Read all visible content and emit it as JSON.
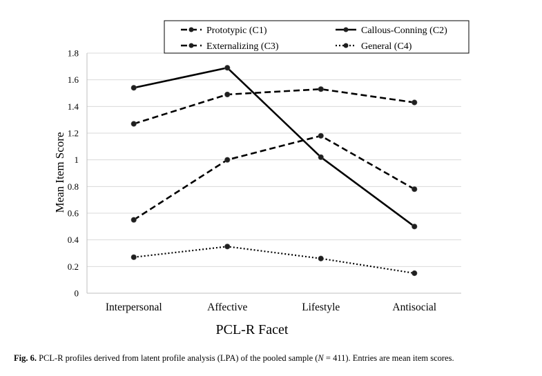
{
  "chart_data": {
    "type": "line",
    "categories": [
      "Interpersonal",
      "Affective",
      "Lifestyle",
      "Antisocial"
    ],
    "series": [
      {
        "name": "Prototypic (C1)",
        "values": [
          1.27,
          1.49,
          1.53,
          1.43
        ],
        "style": "dashed"
      },
      {
        "name": "Callous-Conning (C2)",
        "values": [
          1.54,
          1.69,
          1.02,
          0.5
        ],
        "style": "solid"
      },
      {
        "name": "Externalizing (C3)",
        "values": [
          0.55,
          1.0,
          1.18,
          0.78
        ],
        "style": "dashed"
      },
      {
        "name": "General (C4)",
        "values": [
          0.27,
          0.35,
          0.26,
          0.15
        ],
        "style": "dotted"
      }
    ],
    "xlabel": "PCL-R Facet",
    "ylabel": "Mean Item Score",
    "ylim": [
      0,
      1.8
    ],
    "yticks": [
      "0",
      "0.2",
      "0.4",
      "0.6",
      "0.8",
      "1",
      "1.2",
      "1.4",
      "1.6",
      "1.8"
    ],
    "grid": "horizontal",
    "legend": "top",
    "colors": {
      "line": "#000000",
      "marker": "#1f1f1f",
      "grid": "#d9d9d9"
    }
  },
  "caption": {
    "label": "Fig. 6.",
    "text_before_n": "PCL-R profiles derived from latent profile analysis (LPA) of the pooled sample (",
    "n_symbol": "N",
    "text_after_n": " = 411). Entries are mean item scores."
  }
}
